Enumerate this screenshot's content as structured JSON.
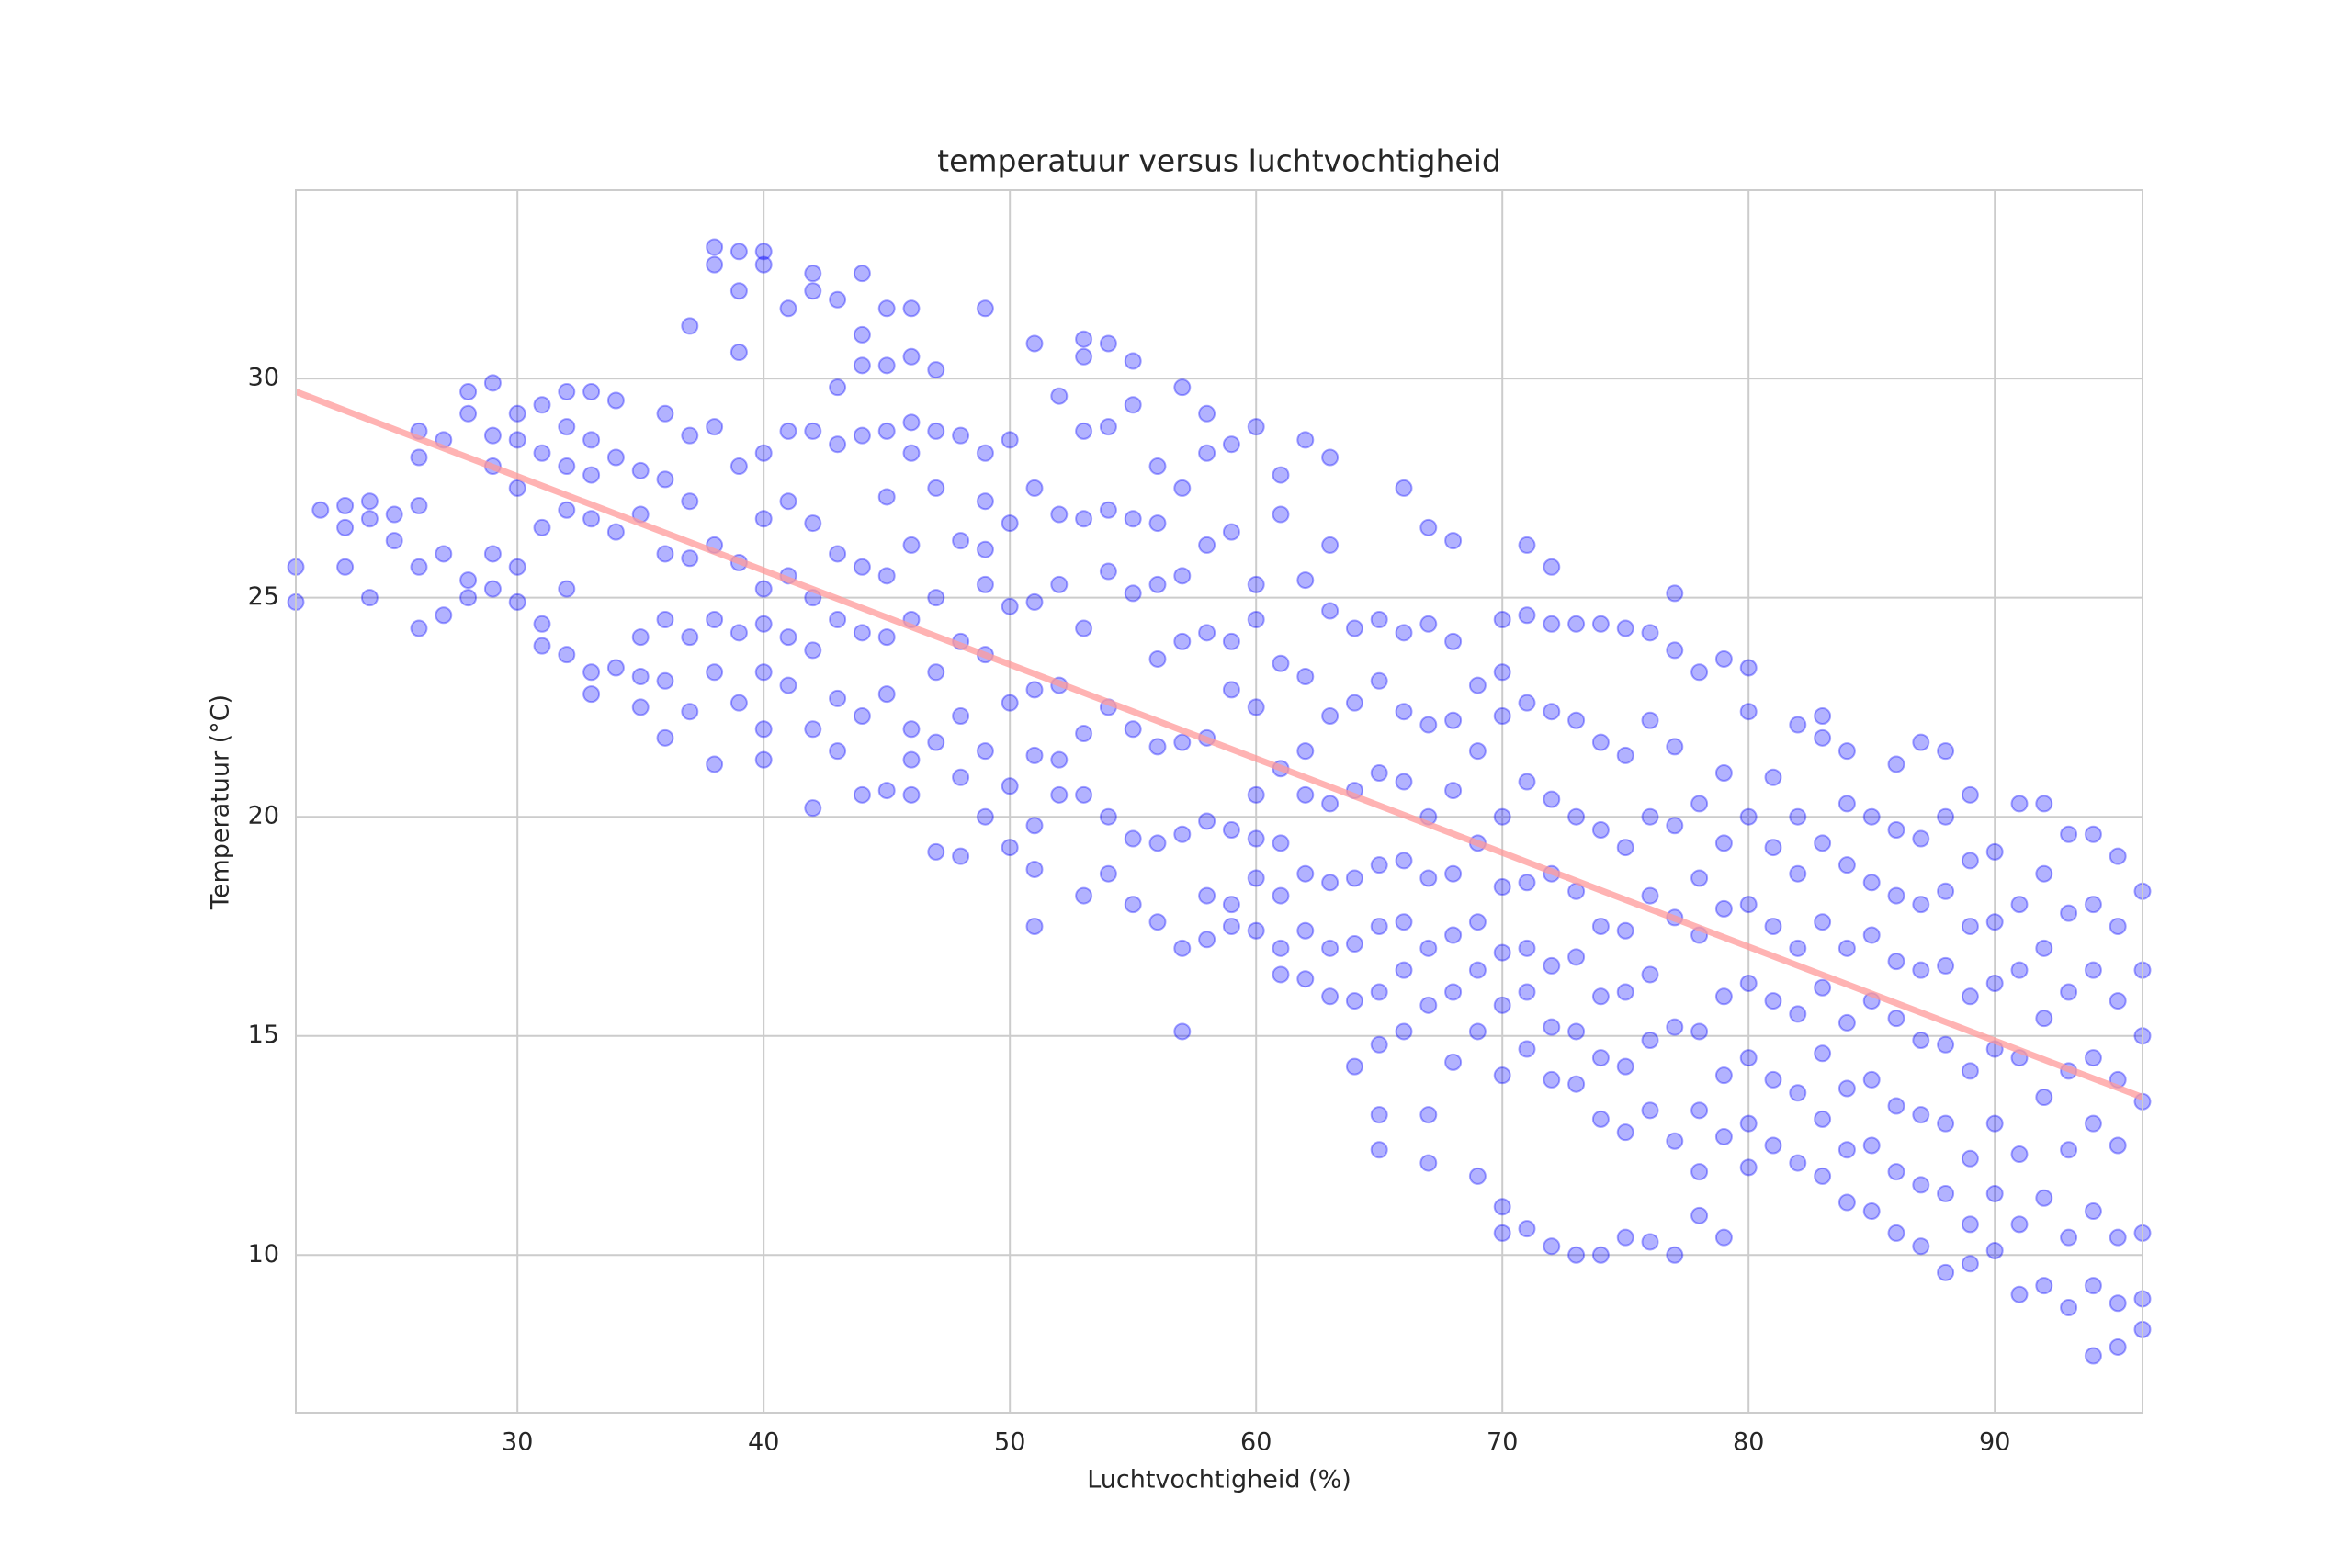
{
  "chart_data": {
    "type": "scatter",
    "title": "temperatuur versus luchtvochtigheid",
    "x_label": "Luchtvochtigheid (%)",
    "y_label": "Temperatuur (°C)",
    "xlim": [
      21,
      96
    ],
    "ylim": [
      6.4,
      34.3
    ],
    "xticks": [
      30,
      40,
      50,
      60,
      70,
      80,
      90
    ],
    "yticks": [
      10,
      15,
      20,
      25,
      30
    ],
    "grid": true,
    "color": "#0000ff",
    "x": [
      21,
      21,
      22,
      23,
      23,
      23,
      24,
      24,
      24,
      25,
      25,
      26,
      26,
      26,
      26,
      26,
      27,
      27,
      27,
      28,
      28,
      28,
      28,
      29,
      29,
      29,
      29,
      29,
      30,
      30,
      30,
      30,
      30,
      31,
      31,
      31,
      31,
      31,
      32,
      32,
      32,
      32,
      32,
      32,
      33,
      33,
      33,
      33,
      33,
      33,
      34,
      34,
      34,
      34,
      35,
      35,
      35,
      35,
      35,
      36,
      36,
      36,
      36,
      36,
      36,
      37,
      37,
      37,
      37,
      37,
      37,
      38,
      38,
      38,
      38,
      38,
      38,
      38,
      39,
      39,
      39,
      39,
      39,
      39,
      39,
      40,
      40,
      40,
      40,
      40,
      40,
      40,
      40,
      40,
      41,
      41,
      41,
      41,
      41,
      41,
      42,
      42,
      42,
      42,
      42,
      42,
      42,
      42,
      43,
      43,
      43,
      43,
      43,
      43,
      43,
      44,
      44,
      44,
      44,
      44,
      44,
      44,
      44,
      45,
      45,
      45,
      45,
      45,
      45,
      45,
      45,
      46,
      46,
      46,
      46,
      46,
      46,
      46,
      46,
      46,
      47,
      47,
      47,
      47,
      47,
      47,
      47,
      48,
      48,
      48,
      48,
      48,
      48,
      49,
      49,
      49,
      49,
      49,
      49,
      49,
      49,
      50,
      50,
      50,
      50,
      50,
      50,
      51,
      51,
      51,
      51,
      51,
      51,
      51,
      51,
      52,
      52,
      52,
      52,
      52,
      52,
      53,
      53,
      53,
      53,
      53,
      53,
      53,
      53,
      54,
      54,
      54,
      54,
      54,
      54,
      54,
      55,
      55,
      55,
      55,
      55,
      55,
      55,
      56,
      56,
      56,
      56,
      56,
      56,
      56,
      57,
      57,
      57,
      57,
      57,
      57,
      57,
      57,
      58,
      58,
      58,
      58,
      58,
      58,
      58,
      58,
      59,
      59,
      59,
      59,
      59,
      59,
      59,
      60,
      60,
      60,
      60,
      60,
      60,
      60,
      60,
      61,
      61,
      61,
      61,
      61,
      61,
      61,
      61,
      62,
      62,
      62,
      62,
      62,
      62,
      62,
      62,
      63,
      63,
      63,
      63,
      63,
      63,
      63,
      63,
      64,
      64,
      64,
      64,
      64,
      64,
      64,
      65,
      65,
      65,
      65,
      65,
      65,
      65,
      65,
      65,
      66,
      66,
      66,
      66,
      66,
      66,
      66,
      66,
      67,
      67,
      67,
      67,
      67,
      67,
      67,
      67,
      67,
      68,
      68,
      68,
      68,
      68,
      68,
      68,
      68,
      69,
      69,
      69,
      69,
      69,
      69,
      69,
      70,
      70,
      70,
      70,
      70,
      70,
      70,
      70,
      70,
      70,
      71,
      71,
      71,
      71,
      71,
      71,
      71,
      71,
      71,
      72,
      72,
      72,
      72,
      72,
      72,
      72,
      72,
      72,
      73,
      73,
      73,
      73,
      73,
      73,
      73,
      73,
      74,
      74,
      74,
      74,
      74,
      74,
      74,
      74,
      75,
      75,
      75,
      75,
      75,
      75,
      75,
      75,
      76,
      76,
      76,
      76,
      76,
      76,
      76,
      76,
      77,
      77,
      77,
      77,
      77,
      77,
      77,
      77,
      78,
      78,
      78,
      78,
      78,
      78,
      78,
      78,
      79,
      79,
      79,
      79,
      79,
      79,
      79,
      79,
      80,
      80,
      80,
      80,
      80,
      80,
      80,
      80,
      81,
      81,
      81,
      81,
      81,
      81,
      82,
      82,
      82,
      82,
      82,
      82,
      82,
      83,
      83,
      83,
      83,
      83,
      83,
      83,
      83,
      84,
      84,
      84,
      84,
      84,
      84,
      84,
      84,
      85,
      85,
      85,
      85,
      85,
      85,
      85,
      86,
      86,
      86,
      86,
      86,
      86,
      86,
      86,
      87,
      87,
      87,
      87,
      87,
      87,
      87,
      87,
      88,
      88,
      88,
      88,
      88,
      88,
      88,
      88,
      89,
      89,
      89,
      89,
      89,
      89,
      89,
      89,
      90,
      90,
      90,
      90,
      90,
      90,
      90,
      91,
      91,
      91,
      91,
      91,
      91,
      91,
      92,
      92,
      92,
      92,
      92,
      92,
      92,
      93,
      93,
      93,
      93,
      93,
      93,
      93,
      94,
      94,
      94,
      94,
      94,
      94,
      94,
      94,
      95,
      95,
      95,
      95,
      95,
      95,
      95,
      95,
      96,
      96,
      96,
      96,
      96,
      96,
      96
    ],
    "values": [
      25.7,
      24.9,
      27.0,
      27.1,
      26.6,
      25.7,
      27.2,
      26.8,
      25.0,
      26.9,
      26.3,
      28.8,
      28.2,
      27.1,
      25.7,
      24.3,
      28.6,
      26.0,
      24.6,
      29.2,
      29.7,
      25.4,
      25.0,
      29.9,
      28.7,
      28.0,
      26.0,
      25.2,
      29.2,
      28.6,
      27.5,
      25.7,
      24.9,
      29.4,
      28.3,
      26.6,
      24.4,
      23.9,
      29.7,
      28.9,
      28.0,
      27.0,
      25.2,
      23.7,
      29.7,
      28.6,
      27.8,
      26.8,
      23.3,
      22.8,
      29.5,
      28.2,
      26.5,
      23.4,
      27.9,
      26.9,
      24.1,
      23.2,
      22.5,
      29.2,
      27.7,
      26.0,
      24.5,
      23.1,
      21.8,
      31.2,
      28.7,
      27.2,
      25.9,
      24.1,
      22.4,
      33.0,
      32.6,
      28.9,
      26.2,
      24.5,
      23.3,
      21.2,
      32.9,
      32.0,
      30.6,
      28.0,
      25.8,
      24.2,
      22.6,
      32.9,
      32.6,
      28.3,
      26.8,
      25.2,
      24.4,
      23.3,
      22.0,
      21.3,
      31.6,
      28.8,
      27.2,
      25.5,
      24.1,
      23.0,
      32.4,
      32.0,
      28.8,
      26.7,
      25.0,
      23.8,
      22.0,
      20.2,
      31.8,
      29.8,
      28.5,
      26.0,
      24.5,
      22.7,
      21.5,
      32.4,
      31.0,
      30.3,
      28.7,
      25.7,
      24.2,
      22.3,
      20.5,
      31.6,
      30.3,
      28.8,
      27.3,
      25.5,
      24.1,
      22.8,
      20.6,
      31.6,
      30.5,
      29.0,
      28.3,
      26.2,
      24.5,
      22.0,
      21.3,
      20.5,
      30.2,
      28.8,
      27.5,
      25.0,
      23.3,
      21.7,
      19.2,
      28.7,
      26.3,
      24.0,
      22.3,
      20.9,
      19.1,
      31.6,
      28.3,
      27.2,
      26.1,
      25.3,
      23.7,
      21.5,
      20.0,
      28.6,
      26.7,
      24.8,
      22.6,
      20.7,
      19.3,
      30.8,
      27.5,
      24.9,
      22.9,
      21.4,
      19.8,
      18.8,
      17.5,
      29.6,
      26.9,
      25.3,
      23.0,
      21.3,
      20.5,
      30.9,
      30.5,
      28.8,
      26.8,
      24.3,
      21.9,
      20.5,
      18.2,
      30.8,
      28.9,
      27.0,
      25.6,
      22.5,
      20.0,
      18.7,
      30.4,
      29.4,
      26.8,
      25.1,
      22.0,
      19.5,
      18.0,
      28.0,
      26.7,
      25.3,
      23.6,
      21.6,
      19.4,
      17.6,
      29.8,
      27.5,
      25.5,
      24.0,
      21.7,
      19.6,
      17.0,
      15.1,
      29.2,
      28.3,
      26.2,
      24.2,
      21.8,
      19.9,
      18.2,
      17.2,
      28.5,
      26.5,
      24.0,
      22.9,
      19.7,
      18.0,
      17.5,
      28.9,
      25.3,
      24.5,
      22.5,
      20.5,
      19.5,
      18.6,
      17.4,
      27.8,
      26.9,
      23.5,
      21.1,
      19.4,
      18.2,
      17.0,
      16.4,
      28.6,
      25.4,
      23.2,
      21.5,
      20.5,
      18.7,
      17.4,
      16.3,
      28.2,
      26.2,
      24.7,
      22.3,
      20.3,
      18.5,
      17.0,
      15.9,
      24.3,
      22.6,
      20.6,
      18.6,
      17.1,
      15.8,
      14.3,
      24.5,
      23.1,
      21.0,
      18.9,
      17.5,
      16.0,
      14.8,
      13.2,
      12.4,
      27.5,
      24.2,
      22.4,
      20.8,
      19.0,
      17.6,
      16.5,
      15.1,
      26.6,
      24.4,
      22.1,
      20.0,
      18.6,
      17.0,
      15.7,
      13.2,
      12.1,
      26.3,
      24.0,
      22.2,
      20.6,
      18.7,
      17.3,
      16.0,
      14.4,
      23.0,
      21.5,
      19.4,
      17.6,
      16.5,
      15.1,
      11.8,
      24.5,
      23.3,
      22.3,
      20.0,
      18.4,
      16.9,
      15.7,
      14.1,
      11.1,
      10.5,
      26.2,
      24.6,
      22.6,
      20.8,
      18.5,
      17.0,
      16.0,
      14.7,
      10.6,
      25.7,
      24.4,
      22.4,
      20.4,
      18.7,
      16.6,
      15.2,
      14.0,
      10.2,
      24.4,
      22.2,
      20.0,
      18.3,
      16.8,
      15.1,
      13.9,
      10.0,
      24.4,
      21.7,
      19.7,
      17.5,
      15.9,
      14.5,
      13.1,
      10.0,
      24.3,
      21.4,
      19.3,
      17.4,
      16.0,
      14.3,
      12.8,
      10.4,
      24.2,
      22.2,
      20.0,
      18.2,
      16.4,
      14.9,
      13.3,
      10.3,
      25.1,
      23.8,
      21.6,
      19.8,
      17.7,
      15.2,
      12.6,
      10.0,
      23.3,
      20.3,
      18.6,
      17.3,
      15.1,
      13.3,
      11.9,
      10.9,
      23.6,
      21.0,
      19.4,
      17.9,
      15.9,
      14.1,
      12.7,
      10.4,
      23.4,
      22.4,
      20.0,
      18.0,
      16.2,
      14.5,
      13.0,
      12.0,
      20.9,
      19.3,
      17.5,
      15.8,
      14.0,
      12.5,
      22.1,
      20.0,
      18.7,
      17.0,
      15.5,
      13.7,
      12.1,
      22.3,
      21.8,
      19.4,
      17.6,
      16.1,
      14.6,
      13.1,
      11.8,
      21.5,
      20.3,
      18.9,
      17.0,
      15.3,
      13.8,
      12.4,
      11.2,
      20.0,
      18.5,
      17.3,
      15.8,
      14.0,
      12.5,
      11.0,
      21.2,
      19.7,
      18.2,
      16.7,
      15.4,
      13.4,
      11.9,
      10.5,
      21.7,
      19.5,
      18.0,
      16.5,
      14.9,
      13.2,
      11.6,
      10.2,
      21.5,
      20.0,
      18.3,
      16.6,
      14.8,
      13.0,
      11.4,
      9.6,
      20.5,
      19.0,
      17.5,
      15.9,
      14.2,
      12.2,
      10.7,
      9.8,
      19.2,
      17.6,
      16.2,
      14.7,
      13.0,
      11.4,
      10.1,
      20.3,
      18.0,
      16.5,
      14.5,
      12.3,
      10.7,
      9.1,
      20.3,
      18.7,
      17.0,
      15.4,
      13.6,
      11.3,
      9.3,
      19.6,
      17.8,
      16.0,
      14.2,
      12.4,
      10.4,
      8.8,
      19.6,
      18.0,
      16.5,
      14.5,
      13.0,
      11.0,
      9.3,
      7.7,
      19.1,
      17.5,
      15.8,
      14.0,
      12.5,
      10.4,
      8.9,
      7.9,
      18.3,
      16.5,
      15.0,
      13.5,
      10.5,
      9.0,
      8.3
    ],
    "trend": {
      "x": [
        21,
        96
      ],
      "values": [
        29.7,
        13.6
      ],
      "color": "#ff9999"
    }
  }
}
